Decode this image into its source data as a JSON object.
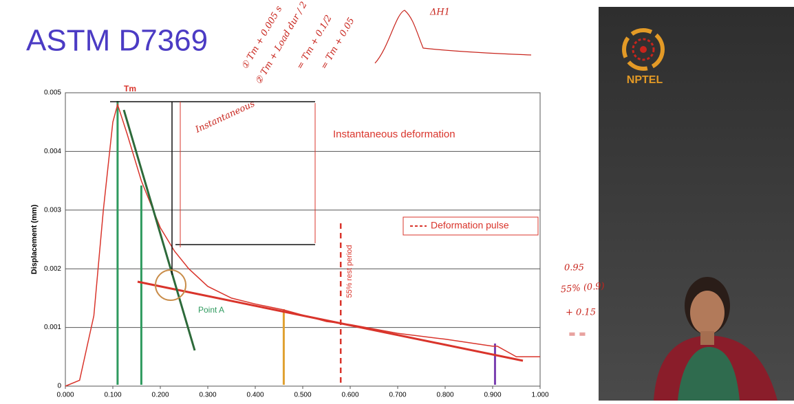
{
  "slide_title": "ASTM D7369",
  "logo_text": "NPTEL",
  "handwritten_notes": [
    "① Tm + 0.005 s",
    "② Tm + Load dur / 2",
    "= Tm + 0.1/2",
    "= Tm + 0.05",
    "ΔH1",
    "Instantaneous",
    "0.95",
    "55% (0.9)",
    "+ 0.15",
    "= ="
  ],
  "chart_data": {
    "type": "line",
    "y_label": "Displacement (mm)",
    "x": [
      0.0,
      0.03,
      0.06,
      0.08,
      0.1,
      0.11,
      0.13,
      0.16,
      0.2,
      0.23,
      0.26,
      0.3,
      0.35,
      0.4,
      0.46,
      0.55,
      0.6,
      0.7,
      0.8,
      0.9,
      0.91,
      0.95,
      1.0
    ],
    "series": [
      {
        "name": "Deformation pulse",
        "color": "#d9342b",
        "values": [
          0,
          0.0001,
          0.0012,
          0.003,
          0.0045,
          0.0048,
          0.0043,
          0.0035,
          0.0027,
          0.0023,
          0.002,
          0.0017,
          0.0015,
          0.0014,
          0.0013,
          0.0011,
          0.00105,
          0.0009,
          0.0008,
          0.00068,
          0.00068,
          0.0005,
          0.0005
        ]
      }
    ],
    "xlim": [
      0,
      1.0
    ],
    "ylim": [
      0,
      0.005
    ],
    "xticks": [
      {
        "value": 0,
        "label": "0.000"
      },
      {
        "value": 0.1,
        "label": "0.100"
      },
      {
        "value": 0.2,
        "label": "0.200"
      },
      {
        "value": 0.3,
        "label": "0.300"
      },
      {
        "value": 0.4,
        "label": "0.400"
      },
      {
        "value": 0.5,
        "label": "0.500"
      },
      {
        "value": 0.6,
        "label": "0.600"
      },
      {
        "value": 0.7,
        "label": "0.700"
      },
      {
        "value": 0.8,
        "label": "0.800"
      },
      {
        "value": 0.9,
        "label": "0.900"
      },
      {
        "value": 1.0,
        "label": "1.000"
      }
    ],
    "yticks": [
      0,
      0.001,
      0.002,
      0.003,
      0.004,
      0.005
    ],
    "grid": true,
    "legend": "right",
    "reference_lines": {
      "x": [
        0.11,
        0.16,
        0.46,
        0.905,
        0.58
      ],
      "colors": [
        "#2e9a5e",
        "#2e9a5e",
        "#e0a030",
        "#7a3fb0",
        "#d9342b"
      ]
    },
    "annotations": [
      "Tm",
      "Instantaneous deformation",
      "Point A",
      "55% rest period"
    ]
  }
}
